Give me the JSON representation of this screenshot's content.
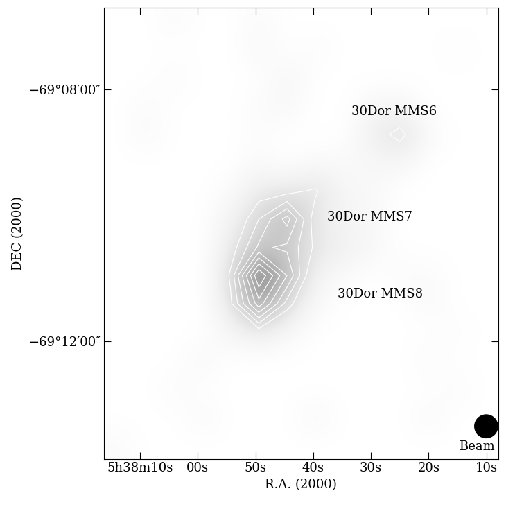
{
  "chart_data": {
    "type": "heatmap",
    "x_label": "R.A. (2000)",
    "y_label": "DEC (2000)",
    "xlim": [
      20296.3,
      20227.9
    ],
    "ylim": [
      -249232,
      -248802
    ],
    "xticks": [
      {
        "value": 20290,
        "label": "5h38m10s"
      },
      {
        "value": 20280,
        "label": "00s"
      },
      {
        "value": 20270,
        "label": "50s"
      },
      {
        "value": 20260,
        "label": "40s"
      },
      {
        "value": 20250,
        "label": "30s"
      },
      {
        "value": 20240,
        "label": "20s"
      },
      {
        "value": 20230,
        "label": "10s"
      }
    ],
    "yticks": [
      {
        "value": -249120,
        "label": "−69°12′00″"
      },
      {
        "value": -248880,
        "label": "−69°08′00″"
      }
    ],
    "color": "Greys",
    "color_range": [
      0,
      8
    ],
    "contour_levels": [
      1.5,
      2.0,
      2.5,
      3.0,
      3.5,
      4.0,
      4.5
    ],
    "cells": [
      [
        0,
        0,
        0.3,
        0,
        0,
        0.3,
        0,
        0,
        0,
        0,
        0,
        0,
        0,
        0
      ],
      [
        0,
        0,
        0,
        0,
        0,
        0.5,
        0,
        0.3,
        0,
        0,
        0,
        0,
        0.2,
        0
      ],
      [
        0,
        0,
        0.3,
        0,
        0,
        0,
        0.6,
        0,
        0,
        0,
        0,
        0,
        0,
        0
      ],
      [
        0,
        0.3,
        0,
        0,
        0,
        0.3,
        0.5,
        0,
        0,
        0.5,
        0.6,
        0,
        0,
        0
      ],
      [
        0,
        0.4,
        0,
        0,
        0,
        0.2,
        0,
        0,
        0,
        1.0,
        1.8,
        0.4,
        0,
        0
      ],
      [
        0,
        0,
        0,
        0,
        0,
        0.4,
        0,
        0.4,
        0.3,
        0.5,
        0.6,
        0,
        0,
        0
      ],
      [
        0,
        0,
        0,
        0,
        0.3,
        1.2,
        1.3,
        1.6,
        0.6,
        0.4,
        0,
        0,
        0,
        0
      ],
      [
        0,
        0,
        0,
        0,
        0.8,
        2.0,
        3.2,
        1.2,
        0.7,
        0.5,
        0,
        0,
        0,
        0
      ],
      [
        0,
        0,
        0,
        0,
        1.2,
        2.6,
        2.4,
        1.4,
        1.0,
        0.5,
        0,
        0,
        0,
        0
      ],
      [
        0,
        0,
        0,
        0,
        1.6,
        5.0,
        3.0,
        0.8,
        0.3,
        0,
        0.3,
        0.3,
        0,
        0
      ],
      [
        0,
        0,
        0,
        0,
        1.4,
        3.8,
        1.8,
        0.4,
        0,
        0,
        0,
        0.4,
        0,
        0
      ],
      [
        0,
        0,
        0,
        0,
        0.6,
        1.2,
        0.5,
        0,
        0,
        0,
        0,
        0,
        0.2,
        0
      ],
      [
        0,
        0,
        0,
        0.5,
        0,
        0,
        0,
        0,
        0,
        0,
        0,
        0.3,
        0,
        0
      ],
      [
        0,
        0,
        0.3,
        0,
        0,
        0,
        0,
        0,
        0,
        0,
        0,
        0,
        0.3,
        0
      ],
      [
        0,
        0,
        0,
        0.4,
        0,
        0,
        0,
        0.5,
        0,
        0,
        0,
        0.4,
        0,
        0
      ],
      [
        0.3,
        0,
        0,
        0,
        0,
        0,
        0,
        0,
        0,
        0,
        0,
        0,
        0,
        0
      ]
    ],
    "annotations": [
      "30Dor MMS6",
      "30Dor MMS7",
      "30Dor MMS8",
      "Beam"
    ]
  }
}
